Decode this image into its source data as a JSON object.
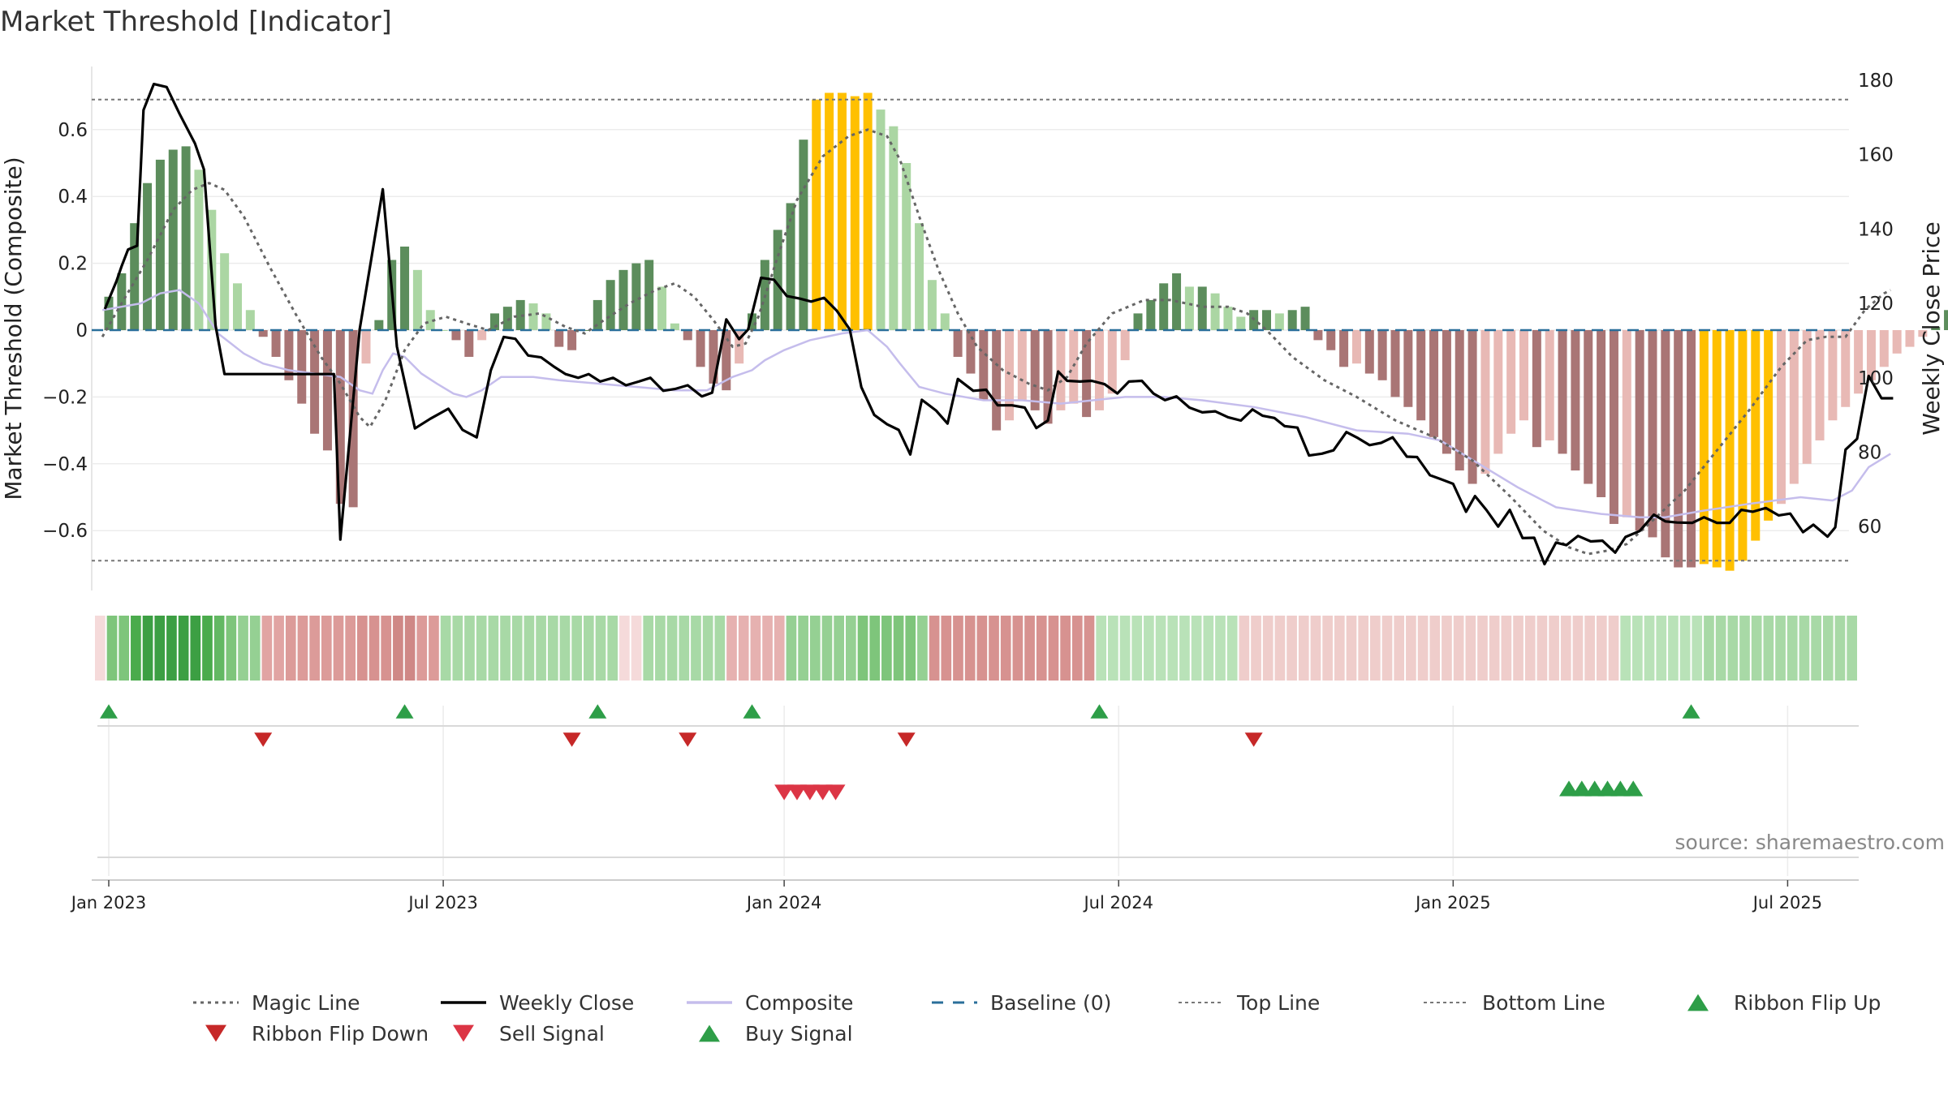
{
  "chart_data": {
    "type": "bar",
    "title": "Market Threshold [Indicator]",
    "ylabel_left": "Market Threshold (Composite)",
    "ylabel_right": "Weekly Close Price",
    "source": "source: sharemaestro.com",
    "ylim_left": [
      -0.78,
      0.78
    ],
    "ylim_right": [
      37.6,
      185.4
    ],
    "yticks_left": [
      {
        "v": 0.6,
        "label": "0.6"
      },
      {
        "v": 0.4,
        "label": "0.4"
      },
      {
        "v": 0.2,
        "label": "0.2"
      },
      {
        "v": 0.0,
        "label": "0"
      },
      {
        "v": -0.2,
        "label": "−0.2"
      },
      {
        "v": -0.4,
        "label": "−0.4"
      },
      {
        "v": -0.6,
        "label": "−0.6"
      }
    ],
    "yticks_right": [
      {
        "v": 180,
        "label": "180"
      },
      {
        "v": 160,
        "label": "160"
      },
      {
        "v": 140,
        "label": "140"
      },
      {
        "v": 120,
        "label": "120"
      },
      {
        "v": 100,
        "label": "100"
      },
      {
        "v": 80,
        "label": "80"
      },
      {
        "v": 60,
        "label": "60"
      }
    ],
    "top_line": 0.69,
    "bottom_line": -0.69,
    "xticks": [
      {
        "week": 0,
        "label": "Jan 2023"
      },
      {
        "week": 26,
        "label": "Jul 2023"
      },
      {
        "week": 52.5,
        "label": "Jan 2024"
      },
      {
        "week": 78.5,
        "label": "Jul 2024"
      },
      {
        "week": 104.5,
        "label": "Jan 2025"
      },
      {
        "week": 130.5,
        "label": "Jul 2025"
      }
    ],
    "colors": {
      "strong_up": "#5c8d5c",
      "weak_up": "#abd6a3",
      "strong_down": "#a97575",
      "weak_down": "#e8b9b5",
      "extreme": "#ffc000",
      "weekly_close": "#000000",
      "composite": "#c5bdec",
      "magic_line": "#666666",
      "baseline": "#2a6f9a",
      "bound_lines": "#777777",
      "flip_up": "#2e9e48",
      "flip_down": "#c62828",
      "sell_signal": "#dc3545",
      "buy_signal": "#2e9e48"
    },
    "histogram": [
      0.1,
      0.17,
      0.32,
      0.44,
      0.51,
      0.54,
      0.55,
      0.48,
      0.36,
      0.23,
      0.14,
      0.06,
      -0.02,
      -0.08,
      -0.15,
      -0.22,
      -0.31,
      -0.36,
      -0.52,
      -0.53,
      -0.1,
      0.03,
      0.21,
      0.25,
      0.18,
      0.06,
      0.0,
      -0.03,
      -0.08,
      -0.03,
      0.05,
      0.07,
      0.09,
      0.08,
      0.05,
      -0.05,
      -0.06,
      0.0,
      0.09,
      0.15,
      0.18,
      0.2,
      0.21,
      0.13,
      0.02,
      -0.03,
      -0.11,
      -0.16,
      -0.18,
      -0.1,
      0.05,
      0.21,
      0.3,
      0.38,
      0.57,
      0.69,
      0.71,
      0.71,
      0.7,
      0.71,
      0.66,
      0.61,
      0.5,
      0.32,
      0.15,
      0.05,
      -0.08,
      -0.13,
      -0.21,
      -0.3,
      -0.27,
      -0.21,
      -0.24,
      -0.28,
      -0.24,
      -0.22,
      -0.26,
      -0.24,
      -0.19,
      -0.09,
      0.05,
      0.09,
      0.14,
      0.17,
      0.13,
      0.13,
      0.11,
      0.07,
      0.04,
      0.06,
      0.06,
      0.05,
      0.06,
      0.07,
      -0.03,
      -0.06,
      -0.11,
      -0.1,
      -0.13,
      -0.15,
      -0.2,
      -0.23,
      -0.27,
      -0.32,
      -0.37,
      -0.42,
      -0.46,
      -0.43,
      -0.37,
      -0.31,
      -0.27,
      -0.35,
      -0.33,
      -0.37,
      -0.42,
      -0.46,
      -0.5,
      -0.58,
      -0.56,
      -0.6,
      -0.62,
      -0.68,
      -0.71,
      -0.71,
      -0.7,
      -0.71,
      -0.72,
      -0.69,
      -0.63,
      -0.57,
      -0.52,
      -0.46,
      -0.4,
      -0.33,
      -0.27,
      -0.23,
      -0.19,
      -0.15,
      -0.11,
      -0.07,
      -0.05,
      -0.02,
      0.01,
      0.06,
      0.01,
      -0.03,
      -0.08,
      -0.11,
      0.04,
      0.15,
      0.26,
      0.29,
      0.3
    ],
    "histogram_extreme": [
      [
        55,
        59
      ],
      [
        124,
        129
      ]
    ],
    "weekly_close": [
      [
        -0.3,
        118.5
      ],
      [
        0.6,
        126.0
      ],
      [
        1.0,
        130.0
      ],
      [
        1.5,
        134.5
      ],
      [
        2.2,
        135.5
      ],
      [
        2.7,
        172.0
      ],
      [
        3.5,
        179.0
      ],
      [
        4.5,
        178.2
      ],
      [
        5.5,
        171.0
      ],
      [
        6.7,
        163.0
      ],
      [
        7.4,
        156.0
      ],
      [
        8.3,
        114.0
      ],
      [
        9.0,
        101.0
      ],
      [
        14,
        101.0
      ],
      [
        17.5,
        101.0
      ],
      [
        18.0,
        56.5
      ],
      [
        18.6,
        79.0
      ],
      [
        19.5,
        113.0
      ],
      [
        21.3,
        150.7
      ],
      [
        22.4,
        108.4
      ],
      [
        23.8,
        86.4
      ],
      [
        25.0,
        89.0
      ],
      [
        26.4,
        91.7
      ],
      [
        27.5,
        86.0
      ],
      [
        28.6,
        84.0
      ],
      [
        29.7,
        102.0
      ],
      [
        30.7,
        111.0
      ],
      [
        31.6,
        110.5
      ],
      [
        32.6,
        106.0
      ],
      [
        33.6,
        105.5
      ],
      [
        34.6,
        103.0
      ],
      [
        35.5,
        101.0
      ],
      [
        36.5,
        100.0
      ],
      [
        37.3,
        101.0
      ],
      [
        38.2,
        99.0
      ],
      [
        39.2,
        100.0
      ],
      [
        40.2,
        98.0
      ],
      [
        41.2,
        99.0
      ],
      [
        42.1,
        100.0
      ],
      [
        43.1,
        96.5
      ],
      [
        44.0,
        97.0
      ],
      [
        45.0,
        98.0
      ],
      [
        46.1,
        95.0
      ],
      [
        46.9,
        96.0
      ],
      [
        48.0,
        115.7
      ],
      [
        49.0,
        110.4
      ],
      [
        49.7,
        113.0
      ],
      [
        50.7,
        126.9
      ],
      [
        51.7,
        126.4
      ],
      [
        52.7,
        122.0
      ],
      [
        53.7,
        121.3
      ],
      [
        54.6,
        120.5
      ],
      [
        55.6,
        121.5
      ],
      [
        56.6,
        118.0
      ],
      [
        57.6,
        113.0
      ],
      [
        58.5,
        97.5
      ],
      [
        59.5,
        90.0
      ],
      [
        60.5,
        87.5
      ],
      [
        61.4,
        86.0
      ],
      [
        62.3,
        79.4
      ],
      [
        63.2,
        94.1
      ],
      [
        64.3,
        91.2
      ],
      [
        65.2,
        87.7
      ],
      [
        66.0,
        99.7
      ],
      [
        67.2,
        96.5
      ],
      [
        68.2,
        96.8
      ],
      [
        69.1,
        92.6
      ],
      [
        70.2,
        92.6
      ],
      [
        71.2,
        92.0
      ],
      [
        72.1,
        86.5
      ],
      [
        73.0,
        88.5
      ],
      [
        73.8,
        101.7
      ],
      [
        74.5,
        99.2
      ],
      [
        75.5,
        99.0
      ],
      [
        76.4,
        99.2
      ],
      [
        77.4,
        98.3
      ],
      [
        78.4,
        95.8
      ],
      [
        79.3,
        99.0
      ],
      [
        80.3,
        99.2
      ],
      [
        81.2,
        95.8
      ],
      [
        82.1,
        94.0
      ],
      [
        83.0,
        95.0
      ],
      [
        84.0,
        92.0
      ],
      [
        85.0,
        90.7
      ],
      [
        86.0,
        91.0
      ],
      [
        87.0,
        89.4
      ],
      [
        88.0,
        88.5
      ],
      [
        88.9,
        91.5
      ],
      [
        89.7,
        89.8
      ],
      [
        90.6,
        89.2
      ],
      [
        91.4,
        87.0
      ],
      [
        92.4,
        86.6
      ],
      [
        93.3,
        79.1
      ],
      [
        94.3,
        79.6
      ],
      [
        95.2,
        80.5
      ],
      [
        96.2,
        85.4
      ],
      [
        97.1,
        83.8
      ],
      [
        98.0,
        81.9
      ],
      [
        98.9,
        82.5
      ],
      [
        99.8,
        84.0
      ],
      [
        100.9,
        78.8
      ],
      [
        101.7,
        78.7
      ],
      [
        102.7,
        73.8
      ],
      [
        103.5,
        72.8
      ],
      [
        104.5,
        71.5
      ],
      [
        105.5,
        64.0
      ],
      [
        106.2,
        68.2
      ],
      [
        107.1,
        64.4
      ],
      [
        108.0,
        60.0
      ],
      [
        108.9,
        64.5
      ],
      [
        109.9,
        56.9
      ],
      [
        110.8,
        57.0
      ],
      [
        111.6,
        49.9
      ],
      [
        112.5,
        55.7
      ],
      [
        113.3,
        55.0
      ],
      [
        114.2,
        57.5
      ],
      [
        115.2,
        56.0
      ],
      [
        116.1,
        56.2
      ],
      [
        117.1,
        53.0
      ],
      [
        117.9,
        57.2
      ],
      [
        119.0,
        58.8
      ],
      [
        120.1,
        63.2
      ],
      [
        121.0,
        61.4
      ],
      [
        121.9,
        61.1
      ],
      [
        123.1,
        61.0
      ],
      [
        124.0,
        62.5
      ],
      [
        125.0,
        61.0
      ],
      [
        126.0,
        61.0
      ],
      [
        126.9,
        64.5
      ],
      [
        127.8,
        64.0
      ],
      [
        128.8,
        65.0
      ],
      [
        129.8,
        63.0
      ],
      [
        130.7,
        63.5
      ],
      [
        131.7,
        58.5
      ],
      [
        132.5,
        60.5
      ],
      [
        133.6,
        57.3
      ],
      [
        134.2,
        59.8
      ],
      [
        135.0,
        80.7
      ],
      [
        135.9,
        83.6
      ],
      [
        136.8,
        100.5
      ],
      [
        137.8,
        94.5
      ],
      [
        138.7,
        94.5
      ]
    ],
    "composite": [
      [
        -0.5,
        0.06
      ],
      [
        1.0,
        0.07
      ],
      [
        2.5,
        0.08
      ],
      [
        4.0,
        0.11
      ],
      [
        5.5,
        0.12
      ],
      [
        7.0,
        0.08
      ],
      [
        8.5,
        -0.01
      ],
      [
        9.5,
        -0.04
      ],
      [
        10.5,
        -0.07
      ],
      [
        12.0,
        -0.1
      ],
      [
        14.0,
        -0.12
      ],
      [
        16.0,
        -0.13
      ],
      [
        18.0,
        -0.14
      ],
      [
        19.5,
        -0.18
      ],
      [
        20.5,
        -0.19
      ],
      [
        21.3,
        -0.12
      ],
      [
        22.1,
        -0.07
      ],
      [
        23.0,
        -0.08
      ],
      [
        24.3,
        -0.13
      ],
      [
        25.5,
        -0.16
      ],
      [
        26.8,
        -0.19
      ],
      [
        27.8,
        -0.2
      ],
      [
        29.0,
        -0.18
      ],
      [
        30.5,
        -0.14
      ],
      [
        31.5,
        -0.14
      ],
      [
        33.0,
        -0.14
      ],
      [
        35.0,
        -0.15
      ],
      [
        38.0,
        -0.16
      ],
      [
        41.0,
        -0.17
      ],
      [
        44.0,
        -0.18
      ],
      [
        46.5,
        -0.18
      ],
      [
        48.5,
        -0.14
      ],
      [
        50.0,
        -0.12
      ],
      [
        51.0,
        -0.09
      ],
      [
        52.5,
        -0.06
      ],
      [
        54.5,
        -0.03
      ],
      [
        57.0,
        -0.01
      ],
      [
        59.0,
        0.0
      ],
      [
        60.5,
        -0.05
      ],
      [
        61.5,
        -0.1
      ],
      [
        63.0,
        -0.17
      ],
      [
        65.0,
        -0.19
      ],
      [
        68.0,
        -0.21
      ],
      [
        71.0,
        -0.21
      ],
      [
        74.0,
        -0.22
      ],
      [
        76.5,
        -0.21
      ],
      [
        79.0,
        -0.2
      ],
      [
        82.0,
        -0.2
      ],
      [
        85.0,
        -0.21
      ],
      [
        89.0,
        -0.23
      ],
      [
        93.0,
        -0.26
      ],
      [
        97.0,
        -0.3
      ],
      [
        101.0,
        -0.31
      ],
      [
        103.5,
        -0.33
      ],
      [
        106.5,
        -0.4
      ],
      [
        109.5,
        -0.47
      ],
      [
        112.5,
        -0.53
      ],
      [
        116.0,
        -0.55
      ],
      [
        119.0,
        -0.56
      ],
      [
        121.0,
        -0.56
      ],
      [
        124.0,
        -0.54
      ],
      [
        127.5,
        -0.52
      ],
      [
        131.5,
        -0.5
      ],
      [
        134.0,
        -0.51
      ],
      [
        135.5,
        -0.48
      ],
      [
        136.8,
        -0.41
      ],
      [
        138.5,
        -0.37
      ]
    ],
    "magic_line": [
      [
        -0.5,
        -0.02
      ],
      [
        1.0,
        0.08
      ],
      [
        3.0,
        0.21
      ],
      [
        5.0,
        0.36
      ],
      [
        6.5,
        0.42
      ],
      [
        7.8,
        0.44
      ],
      [
        9.0,
        0.42
      ],
      [
        10.5,
        0.34
      ],
      [
        12.5,
        0.19
      ],
      [
        14.5,
        0.05
      ],
      [
        16.5,
        -0.08
      ],
      [
        18.0,
        -0.16
      ],
      [
        19.5,
        -0.26
      ],
      [
        20.3,
        -0.29
      ],
      [
        21.5,
        -0.21
      ],
      [
        23.0,
        -0.06
      ],
      [
        24.5,
        0.02
      ],
      [
        26.2,
        0.04
      ],
      [
        27.8,
        0.02
      ],
      [
        29.5,
        0.0
      ],
      [
        31.5,
        0.04
      ],
      [
        33.5,
        0.05
      ],
      [
        35.5,
        0.01
      ],
      [
        37.0,
        -0.01
      ],
      [
        38.5,
        0.03
      ],
      [
        40.5,
        0.08
      ],
      [
        42.5,
        0.12
      ],
      [
        44.0,
        0.14
      ],
      [
        45.5,
        0.1
      ],
      [
        47.0,
        0.03
      ],
      [
        48.5,
        -0.05
      ],
      [
        49.5,
        -0.04
      ],
      [
        50.5,
        0.04
      ],
      [
        52.0,
        0.22
      ],
      [
        53.5,
        0.39
      ],
      [
        55.5,
        0.52
      ],
      [
        57.5,
        0.58
      ],
      [
        59.0,
        0.6
      ],
      [
        60.5,
        0.58
      ],
      [
        61.5,
        0.51
      ],
      [
        63.0,
        0.34
      ],
      [
        64.5,
        0.18
      ],
      [
        66.0,
        0.05
      ],
      [
        67.5,
        -0.05
      ],
      [
        69.5,
        -0.12
      ],
      [
        71.5,
        -0.16
      ],
      [
        73.0,
        -0.18
      ],
      [
        74.5,
        -0.14
      ],
      [
        76.0,
        -0.04
      ],
      [
        78.0,
        0.05
      ],
      [
        80.5,
        0.09
      ],
      [
        82.5,
        0.09
      ],
      [
        85.0,
        0.07
      ],
      [
        87.0,
        0.07
      ],
      [
        88.5,
        0.05
      ],
      [
        90.0,
        0.0
      ],
      [
        92.0,
        -0.08
      ],
      [
        94.5,
        -0.15
      ],
      [
        97.0,
        -0.2
      ],
      [
        100.0,
        -0.27
      ],
      [
        103.0,
        -0.32
      ],
      [
        106.0,
        -0.39
      ],
      [
        109.0,
        -0.5
      ],
      [
        111.5,
        -0.6
      ],
      [
        113.5,
        -0.65
      ],
      [
        115.0,
        -0.67
      ],
      [
        116.5,
        -0.66
      ],
      [
        118.0,
        -0.64
      ],
      [
        120.0,
        -0.57
      ],
      [
        122.5,
        -0.48
      ],
      [
        125.0,
        -0.36
      ],
      [
        127.5,
        -0.24
      ],
      [
        130.0,
        -0.11
      ],
      [
        132.0,
        -0.03
      ],
      [
        133.5,
        -0.02
      ],
      [
        135.0,
        -0.02
      ],
      [
        136.5,
        0.06
      ],
      [
        138.0,
        0.11
      ],
      [
        138.5,
        0.12
      ]
    ],
    "ribbon": [
      "p0",
      "g5",
      "g5",
      "g7",
      "g8",
      "g8",
      "g8",
      "g8",
      "g8",
      "g7",
      "g6",
      "g5",
      "g4",
      "g4",
      "r4",
      "r4",
      "r5",
      "r5",
      "r5",
      "r5",
      "r5",
      "r5",
      "r6",
      "r6",
      "r6",
      "r7",
      "r7",
      "r5",
      "r5",
      "g3",
      "g3",
      "g3",
      "g3",
      "g3",
      "g3",
      "g3",
      "g3",
      "g3",
      "g3",
      "g3",
      "g3",
      "g3",
      "g3",
      "g3",
      "p0",
      "p0",
      "g3",
      "g3",
      "g3",
      "g3",
      "g3",
      "g3",
      "g3",
      "r3",
      "r3",
      "r3",
      "r3",
      "r3",
      "g4",
      "g4",
      "g4",
      "g4",
      "g4",
      "g4",
      "g5",
      "g5",
      "g5",
      "g5",
      "g5",
      "g4",
      "r6",
      "r6",
      "r6",
      "r6",
      "r6",
      "r6",
      "r6",
      "r6",
      "r6",
      "r6",
      "r6",
      "r6",
      "r6",
      "r6",
      "g2",
      "g2",
      "g2",
      "g2",
      "g2",
      "g2",
      "g2",
      "g2",
      "g2",
      "g2",
      "g2",
      "g2",
      "p1",
      "p1",
      "p1",
      "p1",
      "p1",
      "p1",
      "p1",
      "p1",
      "p1",
      "p1",
      "p1",
      "p1",
      "p1",
      "p1",
      "p1",
      "p1",
      "p1",
      "p1",
      "p1",
      "p1",
      "p1",
      "p1",
      "p1",
      "p1",
      "p1",
      "p1",
      "p1",
      "p1",
      "p1",
      "p1",
      "p1",
      "p1",
      "g2",
      "g2",
      "g2",
      "g2",
      "g2",
      "g2",
      "g2",
      "g3",
      "g3",
      "g3",
      "g3",
      "g3",
      "g3",
      "g3",
      "g3",
      "g3",
      "g3",
      "g3",
      "g3",
      "g3"
    ],
    "ribbon_flip_up": [
      0,
      23,
      38,
      50,
      77,
      123
    ],
    "ribbon_flip_down": [
      12,
      36,
      45,
      62,
      89
    ],
    "sell_signals": [
      52.5,
      53.5,
      54.5,
      55.5,
      56.5
    ],
    "buy_signals": [
      113.5,
      114.5,
      115.5,
      116.5,
      117.5,
      118.5
    ],
    "legend": [
      "Magic Line",
      "Weekly Close",
      "Composite",
      "Baseline (0)",
      "Top Line",
      "Bottom Line",
      "Ribbon Flip Up",
      "Ribbon Flip Down",
      "Sell Signal",
      "Buy Signal"
    ]
  }
}
